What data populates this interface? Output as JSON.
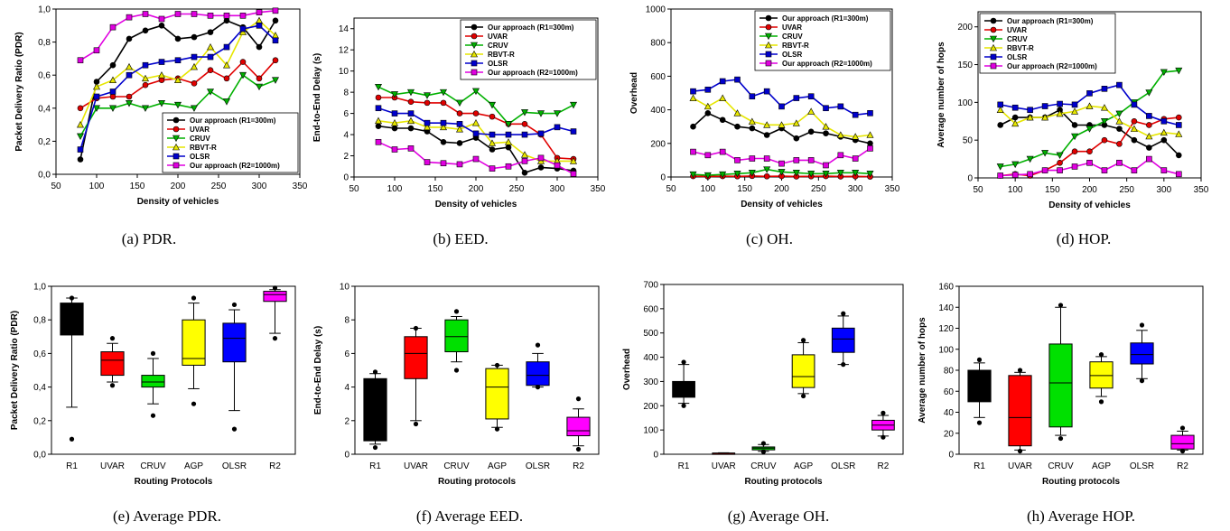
{
  "colors": {
    "Our approach (R1=300m)": "#000000",
    "UVAR": "#e00000",
    "CRUV": "#00b000",
    "RBVT-R": "#e6e600",
    "OLSR": "#0000cc",
    "Our approach (R2=1000m)": "#e000e0"
  },
  "markers": {
    "Our approach (R1=300m)": "circle",
    "UVAR": "circle",
    "CRUV": "tri-down",
    "RBVT-R": "tri-up",
    "OLSR": "square",
    "Our approach (R2=1000m)": "square"
  },
  "chart_data": [
    {
      "type": "line",
      "caption": "(a) PDR.",
      "xlabel": "Density of vehicles",
      "ylabel": "Packet Delivery Ratio (PDR)",
      "xlim": [
        50,
        350
      ],
      "xticks": [
        50,
        100,
        150,
        200,
        250,
        300,
        350
      ],
      "ylim": [
        0,
        1
      ],
      "yticks": [
        0,
        0.2,
        0.4,
        0.6,
        0.8,
        1
      ],
      "ytick_labels": [
        "0,0",
        "0,2",
        "0,4",
        "0,6",
        "0,8",
        "1,0"
      ],
      "legend_position": "bottom-right",
      "x": [
        80,
        100,
        120,
        140,
        160,
        180,
        200,
        220,
        240,
        260,
        280,
        300,
        320
      ],
      "series": [
        {
          "name": "Our approach (R1=300m)",
          "values": [
            0.09,
            0.56,
            0.66,
            0.82,
            0.87,
            0.9,
            0.82,
            0.83,
            0.86,
            0.93,
            0.89,
            0.77,
            0.93
          ]
        },
        {
          "name": "UVAR",
          "values": [
            0.4,
            0.46,
            0.47,
            0.47,
            0.54,
            0.57,
            0.58,
            0.55,
            0.63,
            0.58,
            0.68,
            0.58,
            0.69
          ]
        },
        {
          "name": "CRUV",
          "values": [
            0.23,
            0.4,
            0.4,
            0.43,
            0.4,
            0.43,
            0.42,
            0.4,
            0.5,
            0.44,
            0.6,
            0.53,
            0.57
          ]
        },
        {
          "name": "RBVT-R",
          "values": [
            0.3,
            0.53,
            0.57,
            0.65,
            0.58,
            0.6,
            0.57,
            0.65,
            0.77,
            0.66,
            0.86,
            0.93,
            0.84
          ]
        },
        {
          "name": "OLSR",
          "values": [
            0.15,
            0.47,
            0.5,
            0.6,
            0.66,
            0.68,
            0.69,
            0.71,
            0.71,
            0.77,
            0.88,
            0.9,
            0.81
          ]
        },
        {
          "name": "Our approach (R2=1000m)",
          "values": [
            0.69,
            0.75,
            0.89,
            0.95,
            0.97,
            0.94,
            0.97,
            0.97,
            0.96,
            0.96,
            0.96,
            0.98,
            0.99
          ]
        }
      ]
    },
    {
      "type": "line",
      "caption": "(b) EED.",
      "xlabel": "Density of vehicles",
      "ylabel": "End-to-End Delay (s)",
      "xlim": [
        50,
        350
      ],
      "xticks": [
        50,
        100,
        150,
        200,
        250,
        300,
        350
      ],
      "ylim": [
        0,
        15
      ],
      "yticks": [
        0,
        2,
        4,
        6,
        8,
        10,
        12,
        14
      ],
      "ytick_labels": [
        "0",
        "2",
        "4",
        "6",
        "8",
        "10",
        "12",
        "14"
      ],
      "legend_position": "top-right",
      "x": [
        80,
        100,
        120,
        140,
        160,
        180,
        200,
        220,
        240,
        260,
        280,
        300,
        320
      ],
      "series": [
        {
          "name": "Our approach (R1=300m)",
          "values": [
            4.8,
            4.6,
            4.6,
            4.3,
            3.3,
            3.2,
            3.7,
            2.6,
            2.8,
            0.4,
            0.9,
            0.8,
            0.6
          ]
        },
        {
          "name": "UVAR",
          "values": [
            7.5,
            7.5,
            7.1,
            7.0,
            7.0,
            6.0,
            6.0,
            5.7,
            5.0,
            5.0,
            4.0,
            1.8,
            1.7
          ]
        },
        {
          "name": "CRUV",
          "values": [
            8.5,
            7.8,
            8.0,
            7.7,
            8.0,
            7.0,
            8.1,
            6.8,
            5.0,
            6.1,
            6.0,
            6.0,
            6.8
          ]
        },
        {
          "name": "RBVT-R",
          "values": [
            5.3,
            5.1,
            5.3,
            4.7,
            4.7,
            4.5,
            5.1,
            3.2,
            3.3,
            2.1,
            1.5,
            1.5,
            1.5
          ]
        },
        {
          "name": "OLSR",
          "values": [
            6.5,
            6.0,
            6.0,
            5.1,
            5.1,
            5.0,
            4.1,
            4.0,
            4.0,
            4.0,
            4.1,
            4.7,
            4.3
          ]
        },
        {
          "name": "Our approach (R2=1000m)",
          "values": [
            3.3,
            2.6,
            2.7,
            1.4,
            1.3,
            1.2,
            1.7,
            0.8,
            1.0,
            1.5,
            1.8,
            1.1,
            0.3
          ]
        }
      ]
    },
    {
      "type": "line",
      "caption": "(c) OH.",
      "xlabel": "Density of vehicles",
      "ylabel": "Overhead",
      "xlim": [
        50,
        350
      ],
      "xticks": [
        50,
        100,
        150,
        200,
        250,
        300,
        350
      ],
      "ylim": [
        0,
        1000
      ],
      "yticks": [
        0,
        200,
        400,
        600,
        800,
        1000
      ],
      "ytick_labels": [
        "0",
        "200",
        "400",
        "600",
        "800",
        "1000"
      ],
      "legend_position": "top-right",
      "x": [
        80,
        100,
        120,
        140,
        160,
        180,
        200,
        220,
        240,
        260,
        280,
        300,
        320
      ],
      "series": [
        {
          "name": "Our approach (R1=300m)",
          "values": [
            300,
            380,
            340,
            300,
            290,
            250,
            290,
            230,
            270,
            260,
            240,
            220,
            200
          ]
        },
        {
          "name": "UVAR",
          "values": [
            5,
            3,
            5,
            4,
            6,
            4,
            5,
            3,
            4,
            5,
            3,
            4,
            2
          ]
        },
        {
          "name": "CRUV",
          "values": [
            15,
            10,
            15,
            20,
            25,
            45,
            30,
            25,
            20,
            20,
            25,
            25,
            20
          ]
        },
        {
          "name": "RBVT-R",
          "values": [
            470,
            420,
            470,
            380,
            330,
            310,
            310,
            320,
            390,
            300,
            250,
            240,
            250
          ]
        },
        {
          "name": "OLSR",
          "values": [
            510,
            520,
            570,
            580,
            480,
            510,
            420,
            470,
            480,
            410,
            420,
            370,
            380
          ]
        },
        {
          "name": "Our approach (R2=1000m)",
          "values": [
            150,
            130,
            150,
            100,
            110,
            110,
            80,
            100,
            100,
            70,
            130,
            110,
            170
          ]
        }
      ]
    },
    {
      "type": "line",
      "caption": "(d) HOP.",
      "xlabel": "Density of vehicles",
      "ylabel": "Average number of hops",
      "xlim": [
        50,
        350
      ],
      "xticks": [
        50,
        100,
        150,
        200,
        250,
        300,
        350
      ],
      "ylim": [
        0,
        220
      ],
      "yticks": [
        0,
        50,
        100,
        150,
        200
      ],
      "ytick_labels": [
        "0",
        "50",
        "100",
        "150",
        "200"
      ],
      "legend_position": "top-left",
      "x": [
        80,
        100,
        120,
        140,
        160,
        180,
        200,
        220,
        240,
        260,
        280,
        300,
        320
      ],
      "series": [
        {
          "name": "Our approach (R1=300m)",
          "values": [
            70,
            80,
            80,
            80,
            90,
            70,
            70,
            70,
            65,
            50,
            40,
            50,
            30
          ]
        },
        {
          "name": "UVAR",
          "values": [
            3,
            5,
            3,
            10,
            20,
            35,
            35,
            50,
            45,
            75,
            70,
            78,
            80
          ]
        },
        {
          "name": "CRUV",
          "values": [
            15,
            18,
            25,
            33,
            30,
            55,
            65,
            75,
            85,
            100,
            113,
            140,
            142
          ]
        },
        {
          "name": "RBVT-R",
          "values": [
            90,
            72,
            80,
            80,
            85,
            88,
            95,
            93,
            75,
            65,
            55,
            60,
            58
          ]
        },
        {
          "name": "OLSR",
          "values": [
            97,
            93,
            90,
            95,
            98,
            97,
            112,
            118,
            123,
            97,
            82,
            75,
            70
          ]
        },
        {
          "name": "Our approach (R2=1000m)",
          "values": [
            3,
            4,
            5,
            10,
            10,
            15,
            20,
            10,
            20,
            10,
            25,
            10,
            5
          ]
        }
      ]
    },
    {
      "type": "box",
      "caption": "(e) Average PDR.",
      "xlabel": "Routing Protocols",
      "ylabel": "Packet Delivery Ratio (PDR)",
      "ylim": [
        0,
        1
      ],
      "yticks": [
        0,
        0.2,
        0.4,
        0.6,
        0.8,
        1
      ],
      "ytick_labels": [
        "0,0",
        "0,2",
        "0,4",
        "0,6",
        "0,8",
        "1,0"
      ],
      "categories": [
        "R1",
        "UVAR",
        "CRUV",
        "AGP",
        "OLSR",
        "R2"
      ],
      "box_colors": [
        "#000000",
        "#ff0000",
        "#00e000",
        "#ffff00",
        "#0000ff",
        "#ff00ff"
      ],
      "boxes": [
        {
          "whisker_low": 0.28,
          "q1": 0.71,
          "median": 0.83,
          "q3": 0.9,
          "whisker_high": 0.93,
          "outliers": [
            0.09,
            0.93
          ]
        },
        {
          "whisker_low": 0.43,
          "q1": 0.47,
          "median": 0.56,
          "q3": 0.61,
          "whisker_high": 0.66,
          "outliers": [
            0.41,
            0.69
          ]
        },
        {
          "whisker_low": 0.3,
          "q1": 0.4,
          "median": 0.43,
          "q3": 0.47,
          "whisker_high": 0.57,
          "outliers": [
            0.23,
            0.6
          ]
        },
        {
          "whisker_low": 0.39,
          "q1": 0.53,
          "median": 0.57,
          "q3": 0.8,
          "whisker_high": 0.9,
          "outliers": [
            0.3,
            0.93
          ]
        },
        {
          "whisker_low": 0.26,
          "q1": 0.55,
          "median": 0.69,
          "q3": 0.78,
          "whisker_high": 0.86,
          "outliers": [
            0.15,
            0.89
          ]
        },
        {
          "whisker_low": 0.72,
          "q1": 0.91,
          "median": 0.95,
          "q3": 0.97,
          "whisker_high": 0.98,
          "outliers": [
            0.69,
            0.99
          ]
        }
      ]
    },
    {
      "type": "box",
      "caption": "(f) Average EED.",
      "xlabel": "Routing protocols",
      "ylabel": "End-to-End Delay (s)",
      "ylim": [
        0,
        10
      ],
      "yticks": [
        0,
        2,
        4,
        6,
        8,
        10
      ],
      "ytick_labels": [
        "0",
        "2",
        "4",
        "6",
        "8",
        "10"
      ],
      "categories": [
        "R1",
        "UVAR",
        "CRUV",
        "AGP",
        "OLSR",
        "R2"
      ],
      "box_colors": [
        "#000000",
        "#ff0000",
        "#00e000",
        "#ffff00",
        "#0000ff",
        "#ff00ff"
      ],
      "boxes": [
        {
          "whisker_low": 0.6,
          "q1": 0.8,
          "median": 2.8,
          "q3": 4.5,
          "whisker_high": 4.8,
          "outliers": [
            0.4,
            4.9
          ]
        },
        {
          "whisker_low": 2.0,
          "q1": 4.5,
          "median": 6.0,
          "q3": 7.0,
          "whisker_high": 7.5,
          "outliers": [
            1.8,
            7.5
          ]
        },
        {
          "whisker_low": 5.5,
          "q1": 6.1,
          "median": 7.0,
          "q3": 8.0,
          "whisker_high": 8.2,
          "outliers": [
            5.0,
            8.5
          ]
        },
        {
          "whisker_low": 1.6,
          "q1": 2.1,
          "median": 4.0,
          "q3": 5.1,
          "whisker_high": 5.3,
          "outliers": [
            1.5,
            5.3
          ]
        },
        {
          "whisker_low": 4.0,
          "q1": 4.1,
          "median": 4.7,
          "q3": 5.5,
          "whisker_high": 6.0,
          "outliers": [
            4.0,
            6.5
          ]
        },
        {
          "whisker_low": 0.5,
          "q1": 1.1,
          "median": 1.4,
          "q3": 2.2,
          "whisker_high": 2.7,
          "outliers": [
            0.3,
            3.3
          ]
        }
      ]
    },
    {
      "type": "box",
      "caption": "(g) Average OH.",
      "xlabel": "Routing protocols",
      "ylabel": "Overhead",
      "ylim": [
        0,
        700
      ],
      "yticks": [
        0,
        100,
        200,
        300,
        400,
        500,
        600,
        700
      ],
      "ytick_labels": [
        "0",
        "100",
        "200",
        "300",
        "400",
        "500",
        "600",
        "700"
      ],
      "categories": [
        "R1",
        "UVAR",
        "CRUV",
        "AGP",
        "OLSR",
        "R2"
      ],
      "box_colors": [
        "#000000",
        "#ff0000",
        "#00e000",
        "#ffff00",
        "#0000ff",
        "#ff00ff"
      ],
      "boxes": [
        {
          "whisker_low": 210,
          "q1": 235,
          "median": 270,
          "q3": 300,
          "whisker_high": 370,
          "outliers": [
            200,
            380
          ]
        },
        {
          "whisker_low": 2,
          "q1": 3,
          "median": 4,
          "q3": 5,
          "whisker_high": 6,
          "outliers": []
        },
        {
          "whisker_low": 12,
          "q1": 18,
          "median": 25,
          "q3": 30,
          "whisker_high": 40,
          "outliers": [
            10,
            45
          ]
        },
        {
          "whisker_low": 250,
          "q1": 275,
          "median": 320,
          "q3": 410,
          "whisker_high": 460,
          "outliers": [
            240,
            470
          ]
        },
        {
          "whisker_low": 370,
          "q1": 420,
          "median": 475,
          "q3": 520,
          "whisker_high": 570,
          "outliers": [
            370,
            580
          ]
        },
        {
          "whisker_low": 75,
          "q1": 100,
          "median": 120,
          "q3": 140,
          "whisker_high": 160,
          "outliers": [
            70,
            170
          ]
        }
      ]
    },
    {
      "type": "box",
      "caption": "(h) Average HOP.",
      "xlabel": "Routing protocols",
      "ylabel": "Average number of hops",
      "ylim": [
        0,
        160
      ],
      "yticks": [
        0,
        20,
        40,
        60,
        80,
        100,
        120,
        140,
        160
      ],
      "ytick_labels": [
        "0",
        "20",
        "40",
        "60",
        "80",
        "100",
        "120",
        "140",
        "160"
      ],
      "categories": [
        "R1",
        "UVAR",
        "CRUV",
        "AGP",
        "OLSR",
        "R2"
      ],
      "box_colors": [
        "#000000",
        "#ff0000",
        "#00e000",
        "#ffff00",
        "#0000ff",
        "#ff00ff"
      ],
      "boxes": [
        {
          "whisker_low": 35,
          "q1": 50,
          "median": 70,
          "q3": 80,
          "whisker_high": 87,
          "outliers": [
            30,
            90
          ]
        },
        {
          "whisker_low": 4,
          "q1": 8,
          "median": 35,
          "q3": 75,
          "whisker_high": 78,
          "outliers": [
            3,
            80
          ]
        },
        {
          "whisker_low": 18,
          "q1": 26,
          "median": 68,
          "q3": 105,
          "whisker_high": 140,
          "outliers": [
            15,
            142
          ]
        },
        {
          "whisker_low": 55,
          "q1": 63,
          "median": 75,
          "q3": 88,
          "whisker_high": 93,
          "outliers": [
            50,
            95
          ]
        },
        {
          "whisker_low": 72,
          "q1": 86,
          "median": 95,
          "q3": 106,
          "whisker_high": 118,
          "outliers": [
            70,
            123
          ]
        },
        {
          "whisker_low": 4,
          "q1": 5,
          "median": 10,
          "q3": 18,
          "whisker_high": 22,
          "outliers": [
            3,
            25
          ]
        }
      ]
    }
  ]
}
